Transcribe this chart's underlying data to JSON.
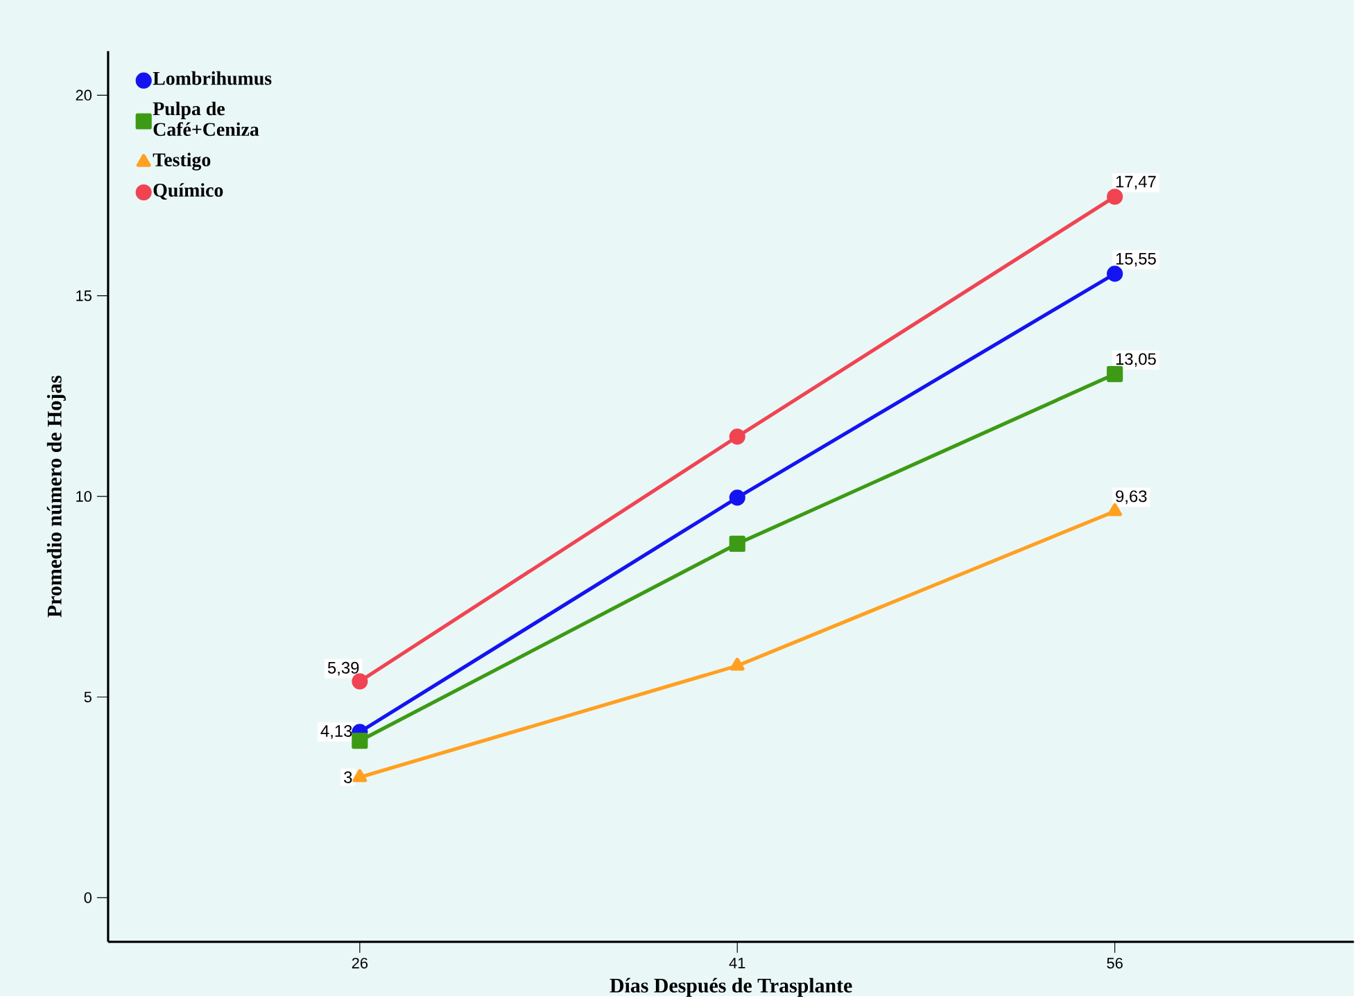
{
  "chart_data": {
    "type": "line",
    "xlabel": "Días Después de Trasplante",
    "ylabel": "Promedio número de Hojas",
    "x": [
      26,
      41,
      56
    ],
    "xlim": [
      16,
      65.5
    ],
    "xticks": [
      26,
      41,
      56
    ],
    "ylim": [
      -1.1,
      21.1
    ],
    "yticks": [
      0,
      5,
      10,
      15,
      20
    ],
    "grid": false,
    "legend": "top left",
    "line_style": "solid",
    "series": [
      {
        "name": "Lombrihumus",
        "color": "#1414f0",
        "marker": "circle",
        "values": [
          4.13,
          9.97,
          15.55
        ],
        "value_labels": [
          "4,13",
          null,
          "15,55"
        ]
      },
      {
        "name": "Pulpa de Café+Ceniza",
        "color": "#3c9a14",
        "marker": "square",
        "values": [
          3.91,
          8.82,
          13.05
        ],
        "value_labels": [
          null,
          null,
          "13,05"
        ]
      },
      {
        "name": "Testigo",
        "color": "#ffa020",
        "marker": "triangle",
        "values": [
          3,
          5.78,
          9.63
        ],
        "value_labels": [
          "3",
          null,
          "9,63"
        ]
      },
      {
        "name": "Químico",
        "color": "#f04452",
        "marker": "circle",
        "values": [
          5.39,
          11.49,
          17.47
        ],
        "value_labels": [
          "5,39",
          null,
          "17,47"
        ]
      }
    ]
  }
}
